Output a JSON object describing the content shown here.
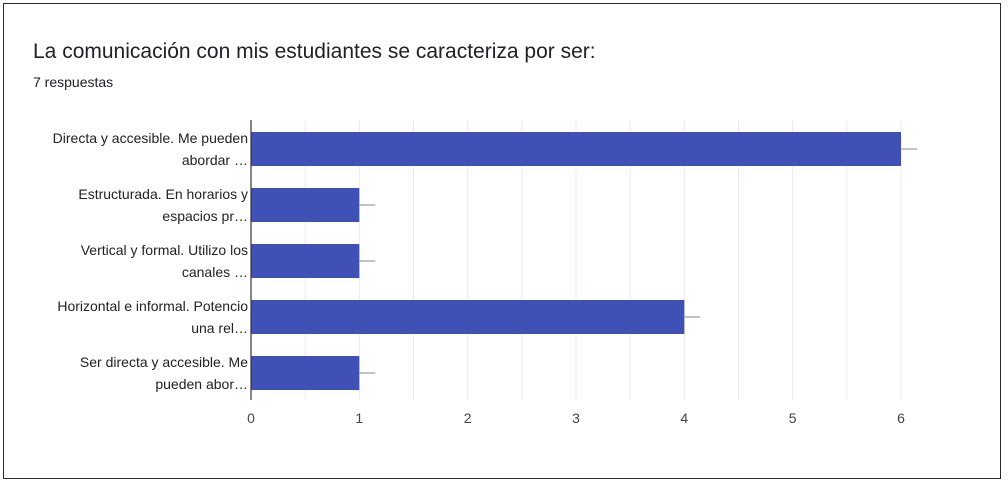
{
  "chart_data": {
    "type": "bar",
    "orientation": "horizontal",
    "title": "La comunicación con mis estudiantes se caracteriza por ser:",
    "subtitle": "7 respuestas",
    "categories": [
      [
        "Directa y accesible. Me pueden",
        "abordar …"
      ],
      [
        "Estructurada. En horarios y",
        "espacios pr…"
      ],
      [
        "Vertical y formal. Utilizo los",
        "canales …"
      ],
      [
        "Horizontal e informal. Potencio",
        "una rel…"
      ],
      [
        "Ser directa y accesible. Me",
        "pueden abor…"
      ]
    ],
    "values": [
      6,
      1,
      1,
      4,
      1
    ],
    "xlim": [
      0,
      6
    ],
    "xticks": [
      "0",
      "1",
      "2",
      "3",
      "4",
      "5",
      "6"
    ],
    "grid": true,
    "bar_color": "#3f51b5"
  }
}
